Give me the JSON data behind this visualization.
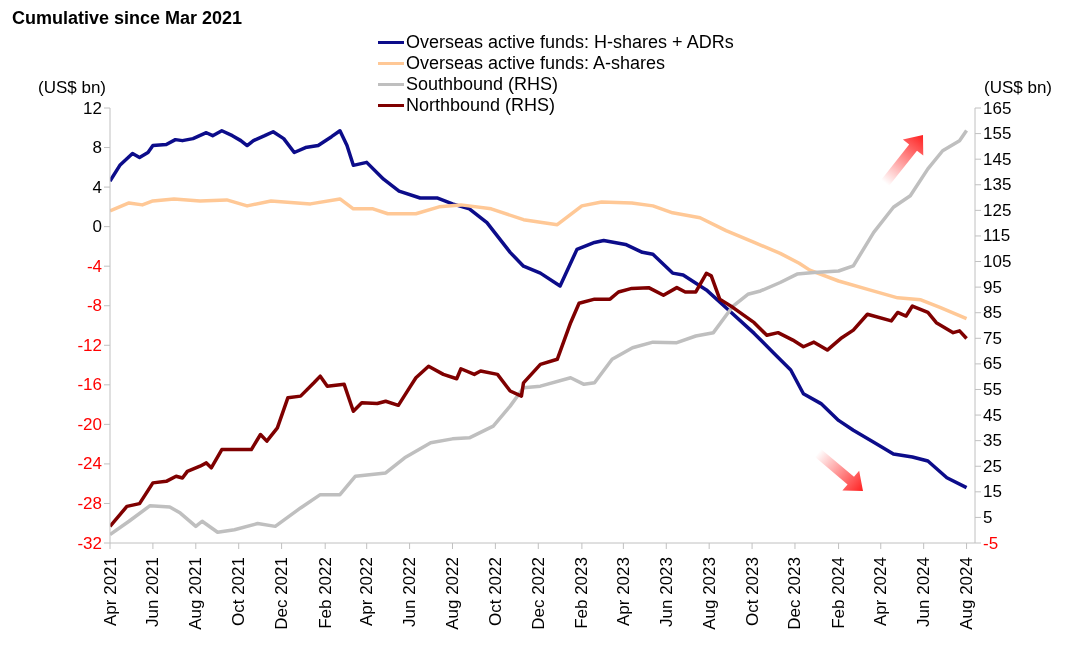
{
  "chart_data": {
    "type": "line",
    "title": "Cumulative since Mar 2021",
    "ylabel": "(US$ bn)",
    "y2label": "(US$ bn)",
    "xlim": [
      "2021-04-01",
      "2024-08-13"
    ],
    "xticks": [
      {
        "value": "2021-04-01",
        "label": "Apr 2021"
      },
      {
        "value": "2021-06-01",
        "label": "Jun 2021"
      },
      {
        "value": "2021-08-01",
        "label": "Aug 2021"
      },
      {
        "value": "2021-10-01",
        "label": "Oct 2021"
      },
      {
        "value": "2021-12-01",
        "label": "Dec 2021"
      },
      {
        "value": "2022-02-01",
        "label": "Feb 2022"
      },
      {
        "value": "2022-04-01",
        "label": "Apr 2022"
      },
      {
        "value": "2022-06-01",
        "label": "Jun 2022"
      },
      {
        "value": "2022-08-01",
        "label": "Aug 2022"
      },
      {
        "value": "2022-10-01",
        "label": "Oct 2022"
      },
      {
        "value": "2022-12-01",
        "label": "Dec 2022"
      },
      {
        "value": "2023-02-01",
        "label": "Feb 2023"
      },
      {
        "value": "2023-04-01",
        "label": "Apr 2023"
      },
      {
        "value": "2023-06-01",
        "label": "Jun 2023"
      },
      {
        "value": "2023-08-01",
        "label": "Aug 2023"
      },
      {
        "value": "2023-10-01",
        "label": "Oct 2023"
      },
      {
        "value": "2023-12-01",
        "label": "Dec 2023"
      },
      {
        "value": "2024-02-01",
        "label": "Feb 2024"
      },
      {
        "value": "2024-04-01",
        "label": "Apr 2024"
      },
      {
        "value": "2024-06-01",
        "label": "Jun 2024"
      },
      {
        "value": "2024-08-01",
        "label": "Aug 2024"
      }
    ],
    "ylim": [
      -32,
      12
    ],
    "yticks": [
      -32,
      -28,
      -24,
      -20,
      -16,
      -12,
      -8,
      -4,
      0,
      4,
      8,
      12
    ],
    "y2lim": [
      -5,
      165
    ],
    "y2ticks": [
      -5,
      5,
      15,
      25,
      35,
      45,
      55,
      65,
      75,
      85,
      95,
      105,
      115,
      125,
      135,
      145,
      155,
      165
    ],
    "legend": "top",
    "grid": false,
    "marker": "none",
    "line_style": "solid",
    "series": [
      {
        "name": "Overseas active funds: H-shares + ADRs",
        "color": "#0c0c8a",
        "x": [
          "2021-04-01",
          "2021-04-15",
          "2021-05-03",
          "2021-05-13",
          "2021-05-25",
          "2021-06-01",
          "2021-06-20",
          "2021-07-03",
          "2021-07-13",
          "2021-07-28",
          "2021-08-16",
          "2021-08-25",
          "2021-09-07",
          "2021-09-22",
          "2021-10-04",
          "2021-10-13",
          "2021-10-22",
          "2021-11-07",
          "2021-11-19",
          "2021-12-04",
          "2021-12-19",
          "2022-01-04",
          "2022-01-22",
          "2022-02-10",
          "2022-02-22",
          "2022-03-04",
          "2022-03-13",
          "2022-04-01",
          "2022-04-25",
          "2022-05-17",
          "2022-06-16",
          "2022-07-10",
          "2022-08-01",
          "2022-08-25",
          "2022-09-19",
          "2022-10-22",
          "2022-11-10",
          "2022-12-04",
          "2023-01-01",
          "2023-01-25",
          "2023-02-19",
          "2023-03-04",
          "2023-04-04",
          "2023-04-28",
          "2023-05-13",
          "2023-06-10",
          "2023-06-25",
          "2023-07-28",
          "2023-08-25",
          "2023-10-04",
          "2023-11-01",
          "2023-11-25",
          "2023-12-13",
          "2024-01-07",
          "2024-02-01",
          "2024-02-22",
          "2024-03-22",
          "2024-04-19",
          "2024-05-16",
          "2024-06-07",
          "2024-07-04",
          "2024-08-01"
        ],
        "values": [
          4.6,
          6.2,
          7.4,
          7.0,
          7.5,
          8.2,
          8.3,
          8.8,
          8.7,
          8.9,
          9.5,
          9.2,
          9.7,
          9.2,
          8.7,
          8.2,
          8.7,
          9.2,
          9.6,
          8.9,
          7.5,
          8.0,
          8.2,
          9.1,
          9.7,
          8.2,
          6.2,
          6.5,
          4.8,
          3.6,
          2.9,
          2.9,
          2.3,
          1.8,
          0.4,
          -2.6,
          -4.0,
          -4.7,
          -6.0,
          -2.3,
          -1.6,
          -1.4,
          -1.8,
          -2.6,
          -2.8,
          -4.7,
          -4.9,
          -6.4,
          -8.2,
          -10.8,
          -12.8,
          -14.5,
          -16.9,
          -17.9,
          -19.6,
          -20.6,
          -21.8,
          -23.0,
          -23.3,
          -23.7,
          -25.4,
          -26.4
        ]
      },
      {
        "name": "Overseas active funds: A-shares",
        "color": "#ffc896",
        "x": [
          "2021-04-01",
          "2021-04-28",
          "2021-05-17",
          "2021-06-01",
          "2021-07-01",
          "2021-08-07",
          "2021-09-14",
          "2021-10-13",
          "2021-11-16",
          "2022-01-11",
          "2022-02-22",
          "2022-03-13",
          "2022-04-10",
          "2022-05-01",
          "2022-06-10",
          "2022-07-13",
          "2022-08-13",
          "2022-09-25",
          "2022-11-10",
          "2022-12-28",
          "2023-02-01",
          "2023-03-01",
          "2023-04-13",
          "2023-05-13",
          "2023-06-10",
          "2023-07-19",
          "2023-08-25",
          "2023-10-04",
          "2023-11-10",
          "2023-12-07",
          "2023-12-22",
          "2024-02-01",
          "2024-03-16",
          "2024-04-25",
          "2024-05-28",
          "2024-06-25",
          "2024-08-01"
        ],
        "values": [
          1.6,
          2.4,
          2.2,
          2.6,
          2.8,
          2.6,
          2.7,
          2.1,
          2.6,
          2.3,
          2.8,
          1.8,
          1.8,
          1.3,
          1.3,
          2.0,
          2.2,
          1.8,
          0.7,
          0.2,
          2.1,
          2.5,
          2.4,
          2.1,
          1.4,
          0.9,
          -0.4,
          -1.6,
          -2.7,
          -3.7,
          -4.4,
          -5.5,
          -6.4,
          -7.2,
          -7.4,
          -8.2,
          -9.3
        ]
      },
      {
        "name": "Southbound (RHS)",
        "color": "#bfbfbf",
        "axis": "y2",
        "x": [
          "2021-04-01",
          "2021-04-28",
          "2021-05-28",
          "2021-06-25",
          "2021-07-10",
          "2021-08-01",
          "2021-08-10",
          "2021-09-01",
          "2021-09-25",
          "2021-10-28",
          "2021-11-22",
          "2021-12-28",
          "2022-01-25",
          "2022-02-22",
          "2022-03-16",
          "2022-04-28",
          "2022-05-25",
          "2022-07-01",
          "2022-08-01",
          "2022-08-25",
          "2022-09-28",
          "2022-10-22",
          "2022-11-10",
          "2022-12-04",
          "2023-01-16",
          "2023-02-04",
          "2023-02-19",
          "2023-03-16",
          "2023-04-14",
          "2023-05-13",
          "2023-06-16",
          "2023-07-13",
          "2023-08-07",
          "2023-09-04",
          "2023-09-25",
          "2023-10-13",
          "2023-11-10",
          "2023-12-04",
          "2023-12-28",
          "2024-02-01",
          "2024-02-22",
          "2024-03-22",
          "2024-04-19",
          "2024-05-13",
          "2024-06-07",
          "2024-06-28",
          "2024-07-22",
          "2024-08-01"
        ],
        "values": [
          -1.7,
          3.5,
          9.6,
          9.1,
          6.7,
          1.5,
          3.5,
          -0.8,
          0.2,
          2.6,
          1.5,
          8.7,
          13.9,
          13.9,
          21.1,
          22.4,
          28.3,
          34.2,
          35.7,
          36.1,
          40.7,
          48.5,
          55.7,
          56.3,
          59.6,
          57.0,
          57.6,
          66.8,
          71.3,
          73.5,
          73.3,
          75.9,
          77.2,
          87.6,
          92.2,
          93.5,
          96.8,
          100.1,
          100.7,
          101.3,
          103.3,
          116.4,
          126.2,
          130.7,
          141.2,
          148.3,
          152.2,
          156.2
        ]
      },
      {
        "name": "Northbound (RHS)",
        "color": "#7f0000",
        "axis": "y2",
        "x": [
          "2021-04-01",
          "2021-04-25",
          "2021-05-13",
          "2021-06-01",
          "2021-06-20",
          "2021-07-04",
          "2021-07-13",
          "2021-07-20",
          "2021-08-07",
          "2021-08-16",
          "2021-08-23",
          "2021-09-07",
          "2021-10-04",
          "2021-10-19",
          "2021-11-01",
          "2021-11-10",
          "2021-11-25",
          "2021-12-10",
          "2021-12-28",
          "2022-01-16",
          "2022-01-25",
          "2022-02-04",
          "2022-02-28",
          "2022-03-13",
          "2022-03-25",
          "2022-04-16",
          "2022-04-28",
          "2022-05-16",
          "2022-06-01",
          "2022-06-10",
          "2022-06-28",
          "2022-07-19",
          "2022-08-07",
          "2022-08-13",
          "2022-09-01",
          "2022-09-10",
          "2022-10-04",
          "2022-10-22",
          "2022-11-07",
          "2022-11-10",
          "2022-12-04",
          "2022-12-28",
          "2023-01-16",
          "2023-01-28",
          "2023-02-19",
          "2023-03-13",
          "2023-03-25",
          "2023-04-13",
          "2023-05-07",
          "2023-05-28",
          "2023-06-16",
          "2023-06-28",
          "2023-07-13",
          "2023-07-28",
          "2023-08-04",
          "2023-08-16",
          "2023-09-04",
          "2023-10-04",
          "2023-10-22",
          "2023-11-07",
          "2023-11-28",
          "2023-12-13",
          "2023-12-28",
          "2024-01-16",
          "2024-02-04",
          "2024-02-22",
          "2024-03-13",
          "2024-04-16",
          "2024-04-25",
          "2024-05-07",
          "2024-05-16",
          "2024-06-07",
          "2024-06-19",
          "2024-07-13",
          "2024-07-22",
          "2024-08-01"
        ],
        "values": [
          1.5,
          9.3,
          10.4,
          18.5,
          19.1,
          21.1,
          20.4,
          23.0,
          25.0,
          26.3,
          24.4,
          31.5,
          31.5,
          31.5,
          37.4,
          34.8,
          40.0,
          51.8,
          52.4,
          57.6,
          60.2,
          56.3,
          57.0,
          46.5,
          49.8,
          49.5,
          50.4,
          48.8,
          55.7,
          59.6,
          64.1,
          60.9,
          59.2,
          63.1,
          60.9,
          62.2,
          60.9,
          54.4,
          52.4,
          57.6,
          64.8,
          66.8,
          81.1,
          88.7,
          90.3,
          90.3,
          93.1,
          94.5,
          94.8,
          91.8,
          94.8,
          93.1,
          93.1,
          100.4,
          99.4,
          90.3,
          87.0,
          81.1,
          76.2,
          77.2,
          74.3,
          71.7,
          73.5,
          70.4,
          74.9,
          78.2,
          84.4,
          81.8,
          85.1,
          83.7,
          87.6,
          85.1,
          81.1,
          77.2,
          77.9,
          74.9
        ]
      }
    ]
  }
}
